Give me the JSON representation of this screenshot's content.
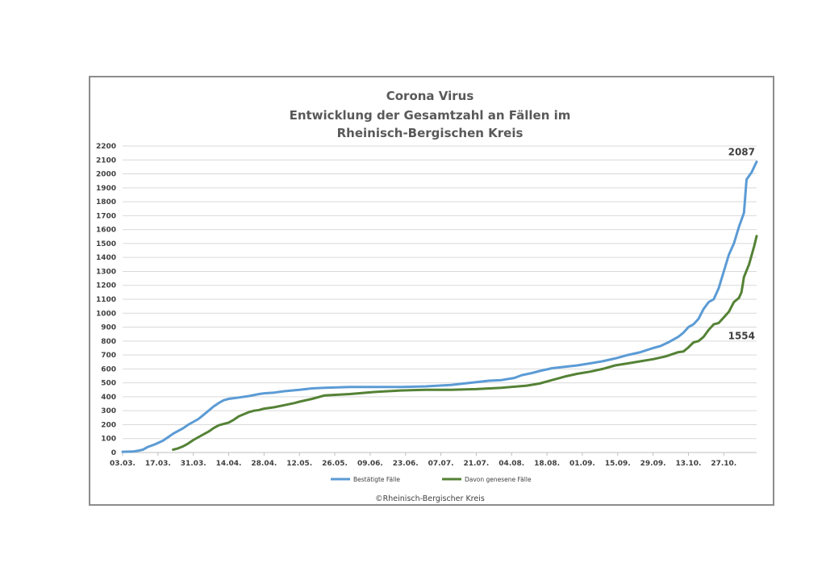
{
  "chart_data": {
    "type": "line",
    "title": [
      "Corona Virus",
      "Entwicklung der Gesamtzahl an Fällen im",
      "Rheinisch-Bergischen Kreis"
    ],
    "ylim": [
      0,
      2200
    ],
    "y_ticks": [
      0,
      100,
      200,
      300,
      400,
      500,
      600,
      700,
      800,
      900,
      1000,
      1100,
      1200,
      1300,
      1400,
      1500,
      1600,
      1700,
      1800,
      1900,
      2000,
      2100,
      2200
    ],
    "x_tick_labels": [
      "03.03.",
      "17.03.",
      "31.03.",
      "14.04.",
      "28.04.",
      "12.05.",
      "26.05.",
      "09.06.",
      "23.06.",
      "07.07.",
      "21.07.",
      "04.08.",
      "18.08.",
      "01.09.",
      "15.09.",
      "29.09.",
      "13.10.",
      "27.10."
    ],
    "x_tick_day_offsets": [
      0,
      14,
      28,
      42,
      56,
      70,
      84,
      98,
      112,
      126,
      140,
      154,
      168,
      182,
      196,
      210,
      224,
      238
    ],
    "xlim_days": [
      0,
      251
    ],
    "grid": true,
    "legend_position": "bottom",
    "series": [
      {
        "name": "Bestätigte Fälle",
        "color": "#5b9bd5",
        "x_days": [
          0,
          4,
          6,
          8,
          10,
          13,
          16,
          18,
          20,
          22,
          24,
          26,
          28,
          30,
          32,
          34,
          36,
          38,
          40,
          42,
          46,
          50,
          54,
          56,
          60,
          64,
          70,
          75,
          80,
          90,
          100,
          110,
          120,
          125,
          130,
          135,
          140,
          145,
          150,
          155,
          158,
          162,
          165,
          170,
          175,
          180,
          185,
          190,
          195,
          200,
          205,
          210,
          213,
          216,
          220,
          222,
          224,
          226,
          228,
          230,
          232,
          234,
          236,
          238,
          240,
          242,
          244,
          246,
          247,
          249,
          251
        ],
        "values": [
          5,
          7,
          12,
          20,
          40,
          60,
          85,
          110,
          135,
          155,
          175,
          200,
          220,
          240,
          270,
          300,
          330,
          355,
          375,
          385,
          395,
          405,
          420,
          425,
          430,
          440,
          450,
          460,
          465,
          470,
          470,
          470,
          475,
          480,
          485,
          495,
          505,
          515,
          520,
          535,
          555,
          570,
          585,
          605,
          615,
          625,
          640,
          655,
          675,
          700,
          720,
          750,
          765,
          790,
          830,
          860,
          900,
          920,
          960,
          1030,
          1080,
          1100,
          1180,
          1300,
          1420,
          1500,
          1620,
          1720,
          1960,
          2010,
          2087
        ],
        "end_label": "2087"
      },
      {
        "name": "Davon genesene Fälle",
        "color": "#548235",
        "x_days": [
          20,
          22,
          24,
          26,
          28,
          30,
          32,
          34,
          36,
          38,
          40,
          42,
          44,
          46,
          48,
          50,
          52,
          54,
          56,
          60,
          64,
          68,
          70,
          75,
          80,
          90,
          100,
          110,
          120,
          130,
          140,
          150,
          160,
          165,
          170,
          175,
          180,
          185,
          190,
          195,
          200,
          205,
          210,
          215,
          220,
          222,
          224,
          226,
          228,
          230,
          232,
          234,
          236,
          238,
          240,
          242,
          244,
          245,
          246,
          248,
          250,
          251
        ],
        "values": [
          20,
          30,
          45,
          65,
          90,
          110,
          130,
          150,
          175,
          195,
          205,
          215,
          235,
          260,
          275,
          290,
          300,
          305,
          315,
          325,
          340,
          355,
          365,
          385,
          410,
          420,
          435,
          445,
          450,
          450,
          455,
          465,
          480,
          495,
          520,
          545,
          565,
          580,
          600,
          625,
          640,
          655,
          670,
          690,
          720,
          725,
          755,
          790,
          800,
          830,
          880,
          920,
          930,
          970,
          1010,
          1080,
          1110,
          1150,
          1260,
          1350,
          1480,
          1554
        ],
        "end_label": "1554"
      }
    ],
    "copyright": "©Rheinisch-Bergischer Kreis"
  }
}
